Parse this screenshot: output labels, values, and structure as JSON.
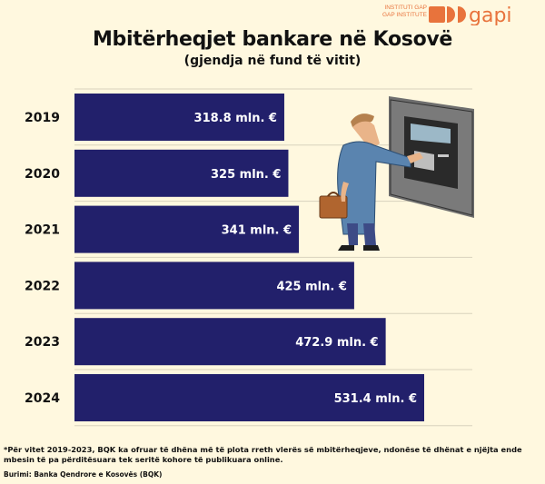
{
  "header": {
    "logo_line1": "INSTITUTI GAP",
    "logo_line2": "GAP INSTITUTE",
    "brand": "gapi",
    "brand_color": "#E8733C"
  },
  "chart_data": {
    "type": "bar",
    "orientation": "horizontal",
    "title": "Mbitërheqjet bankare në Kosovë",
    "subtitle": "(gjendja në fund të vitit)",
    "categories": [
      "2019",
      "2020",
      "2021",
      "2022",
      "2023",
      "2024"
    ],
    "values": [
      318.8,
      325,
      341,
      425,
      472.9,
      531.4
    ],
    "data_labels": [
      "318.8 mln. €",
      "325 mln. €",
      "341 mln. €",
      "425 mln. €",
      "472.9 mln. €",
      "531.4 mln. €"
    ],
    "xlim": [
      0,
      531.4
    ],
    "grid": true,
    "bar_color": "#22206B",
    "label_color": "#FFFFFF"
  },
  "footnote": "*Për vitet 2019-2023, BQK ka ofruar të dhëna më të plota rreth vlerës së mbitërheqjeve, ndonëse të dhënat e njëjta ende mbesin të pa përditësuara tek seritë kohore të publikuara online.",
  "source": "Burimi: Banka Qendrore e Kosovës (BQK)"
}
